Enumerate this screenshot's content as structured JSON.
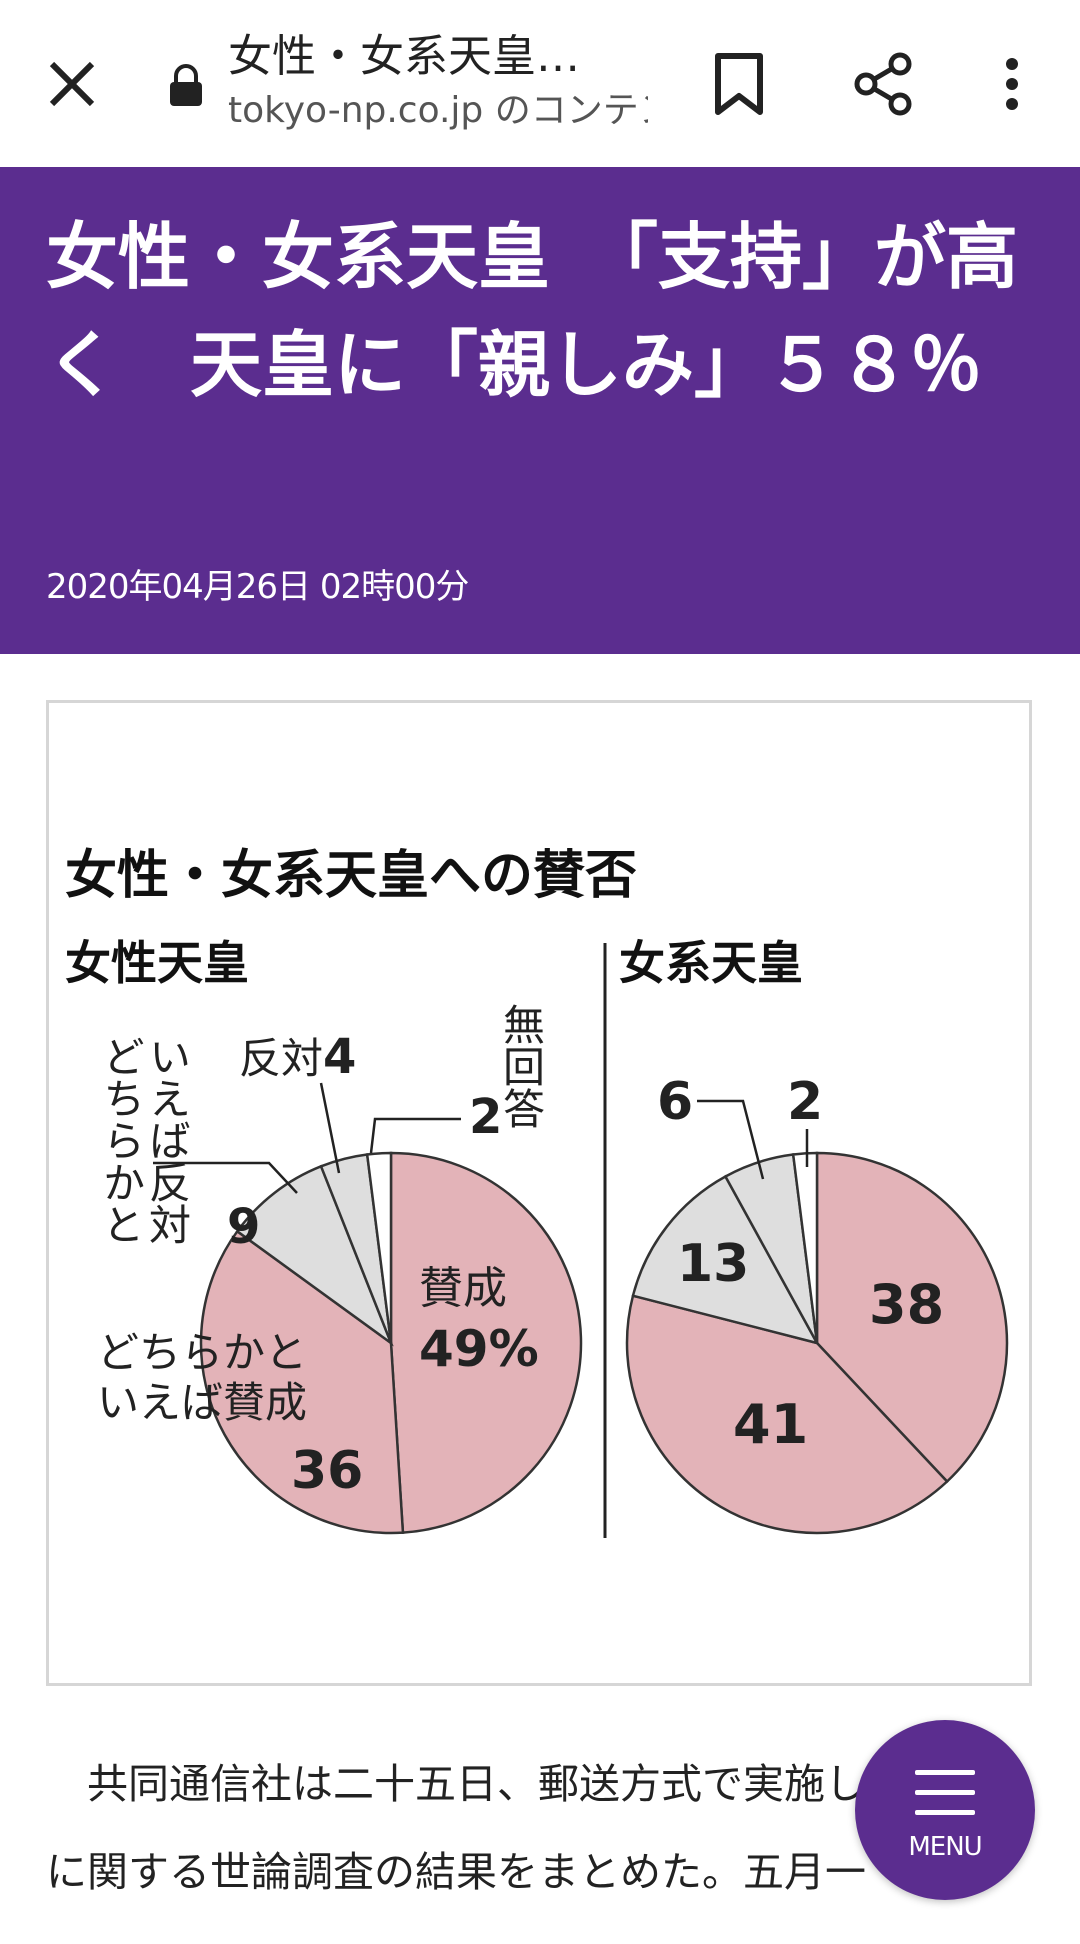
{
  "browser": {
    "tab_title": "女性・女系天皇…",
    "url_text": "tokyo-np.co.jp のコンテン",
    "icons": [
      "close-icon",
      "lock-icon",
      "bookmark-icon",
      "share-icon",
      "more-vert-icon"
    ]
  },
  "article": {
    "headline": "女性・女系天皇　「支持」が高く　天皇に「親しみ」５８％",
    "date": "2020年04月26日 02時00分",
    "body_line1": "共同通信社は二十五日、郵送方式で実施し",
    "body_line2": "に関する世論調査の結果をまとめた。五月一"
  },
  "menu": {
    "label": "MENU",
    "icon": "hamburger-icon",
    "color": "#5b2d8f"
  },
  "colors": {
    "header_bg": "#5b2d8f",
    "favor": "#e3b3b8",
    "against": "#dedede",
    "none": "#ffffff"
  },
  "chart_data": {
    "type": "pie",
    "title": "女性・女系天皇への賛否",
    "charts": [
      {
        "name": "女性天皇",
        "slices": [
          {
            "label": "賛成",
            "value": 49,
            "display": "49%"
          },
          {
            "label": "どちらかといえば賛成",
            "value": 36,
            "display": "36"
          },
          {
            "label": "どちらかといえば反対",
            "value": 9,
            "display": "9"
          },
          {
            "label": "反対",
            "value": 4,
            "display": "4"
          },
          {
            "label": "無回答",
            "value": 2,
            "display": "2"
          }
        ]
      },
      {
        "name": "女系天皇",
        "slices": [
          {
            "label": "賛成",
            "value": 38,
            "display": "38"
          },
          {
            "label": "どちらかといえば賛成",
            "value": 41,
            "display": "41"
          },
          {
            "label": "どちらかといえば反対",
            "value": 13,
            "display": "13"
          },
          {
            "label": "反対",
            "value": 6,
            "display": "6"
          },
          {
            "label": "無回答",
            "value": 2,
            "display": "2"
          }
        ]
      }
    ],
    "labels": {
      "favor_main": "賛成",
      "lean_favor_line1": "どちらかと",
      "lean_favor_line2": "いえば賛成",
      "lean_against_col1": "いえば反対",
      "lean_against_col2": "どちらかと",
      "against_label": "反対",
      "no_answer": "無回答"
    }
  }
}
